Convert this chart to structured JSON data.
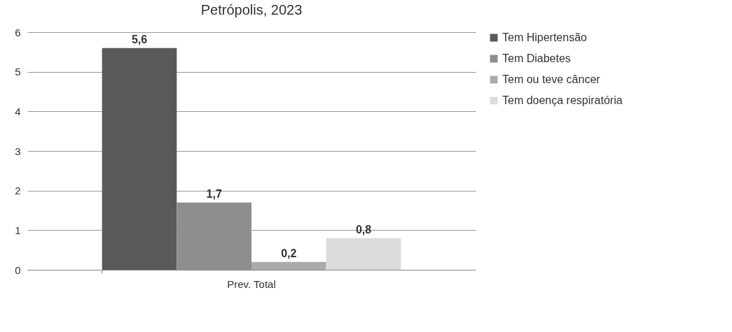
{
  "chart_data": {
    "type": "bar",
    "title": "Petrópolis, 2023",
    "categories": [
      "Prev. Total"
    ],
    "series": [
      {
        "name": "Tem Hipertensão",
        "color": "#595959",
        "values": [
          5.6
        ],
        "value_labels": [
          "5,6"
        ]
      },
      {
        "name": "Tem Diabetes",
        "color": "#8e8e8e",
        "values": [
          1.7
        ],
        "value_labels": [
          "1,7"
        ]
      },
      {
        "name": "Tem ou teve câncer",
        "color": "#ababab",
        "values": [
          0.2
        ],
        "value_labels": [
          "0,2"
        ]
      },
      {
        "name": "Tem doença respiratória",
        "color": "#dcdcdc",
        "values": [
          0.8
        ],
        "value_labels": [
          "0,8"
        ]
      }
    ],
    "ylim": [
      0,
      6
    ],
    "yticks": [
      0,
      1,
      2,
      3,
      4,
      5,
      6
    ],
    "grid": "y",
    "legend": "right"
  }
}
